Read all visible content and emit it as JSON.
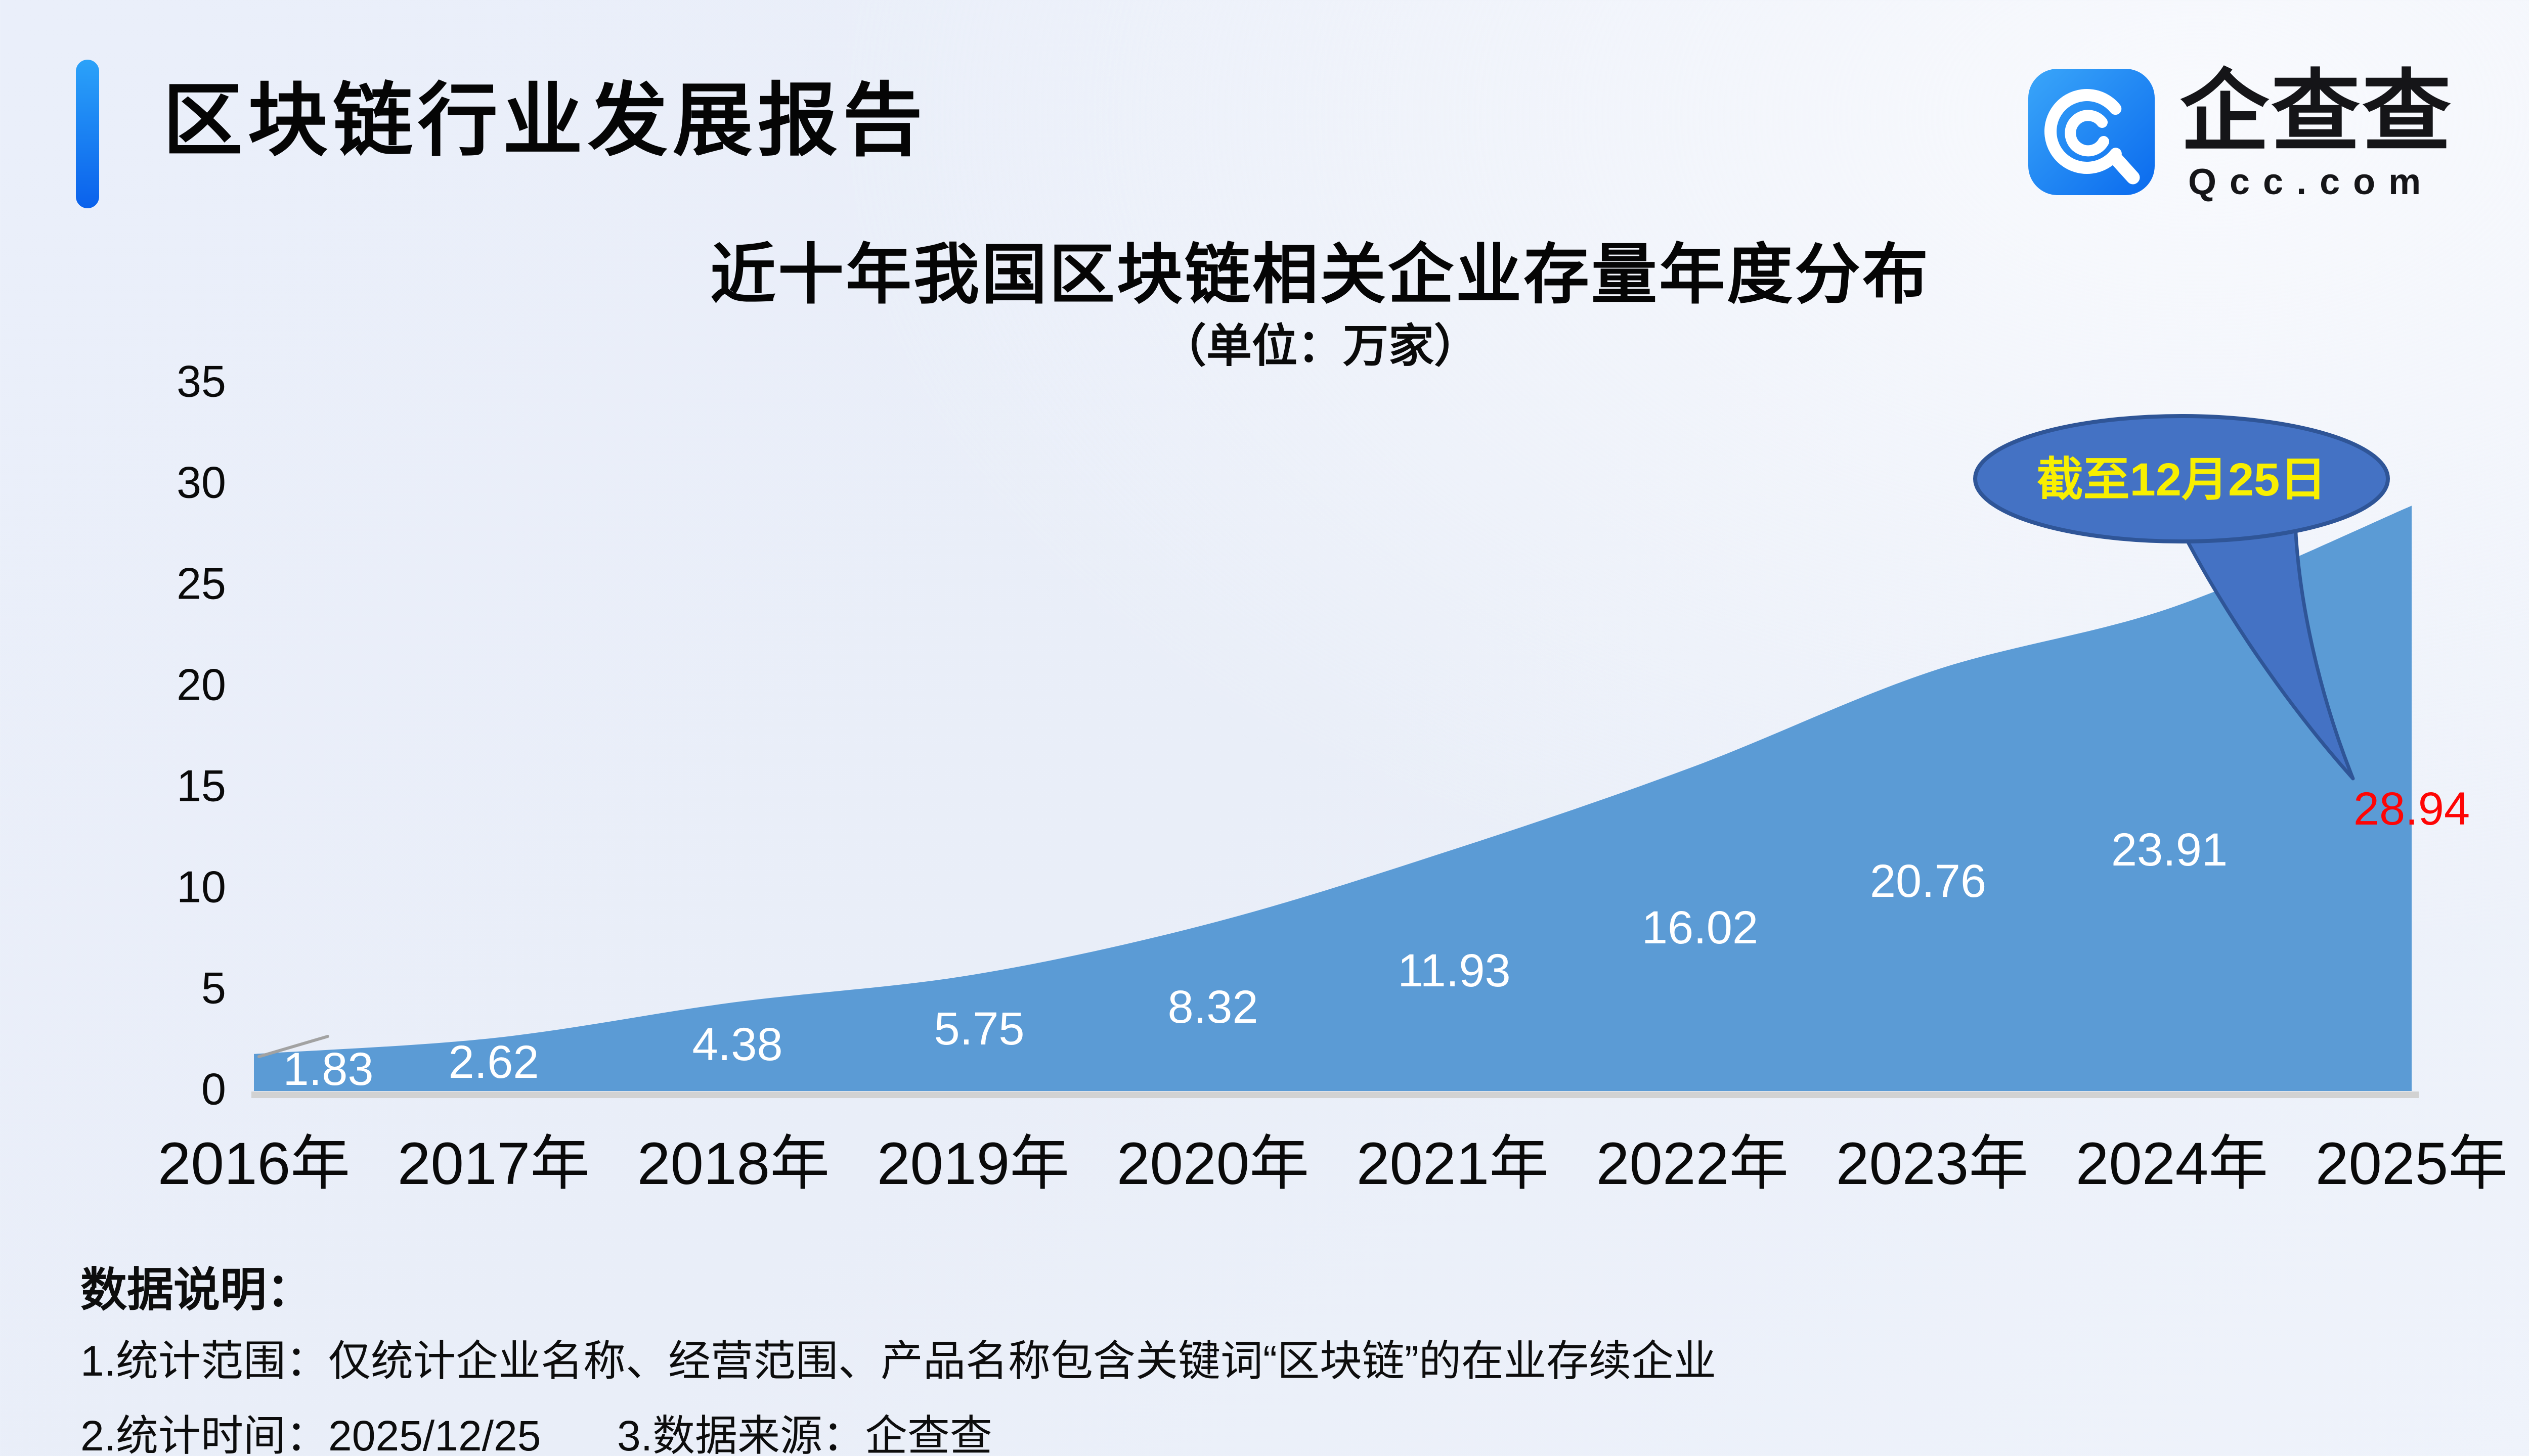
{
  "header": {
    "title": "区块链行业发展报告"
  },
  "logo": {
    "name": "企查查",
    "domain": "Qcc.com",
    "icon": "qcc-q-spiral-icon",
    "icon_color": "#0a6aee"
  },
  "chart": {
    "title": "近十年我国区块链相关企业存量年度分布",
    "subtitle": "（单位：万家）",
    "callout": "截至12月25日",
    "area_color": "#5b9bd5",
    "callout_fill": "#4472c4",
    "callout_border": "#2f5597",
    "callout_text_color": "#f8ef00",
    "highlight_color": "#fe0505",
    "data_label_color": "#ffffff"
  },
  "chart_data": {
    "type": "area",
    "title": "近十年我国区块链相关企业存量年度分布",
    "unit_label": "（单位：万家）",
    "categories": [
      "2016年",
      "2017年",
      "2018年",
      "2019年",
      "2020年",
      "2021年",
      "2022年",
      "2023年",
      "2024年",
      "2025年"
    ],
    "values": [
      1.83,
      2.62,
      4.38,
      5.75,
      8.32,
      11.93,
      16.02,
      20.76,
      23.91,
      28.94
    ],
    "yticks": [
      0,
      5,
      10,
      15,
      20,
      25,
      30,
      35
    ],
    "ylim": [
      0,
      35
    ],
    "grid": false,
    "legend": false,
    "annotation": "截至12月25日",
    "highlight_index": 9
  },
  "notes": {
    "heading": "数据说明：",
    "line1": "1.统计范围：仅统计企业名称、经营范围、产品名称包含关键词“区块链”的在业存续企业",
    "line2a": "2.统计时间：2025/12/25",
    "line2b": "3.数据来源：企查查"
  }
}
